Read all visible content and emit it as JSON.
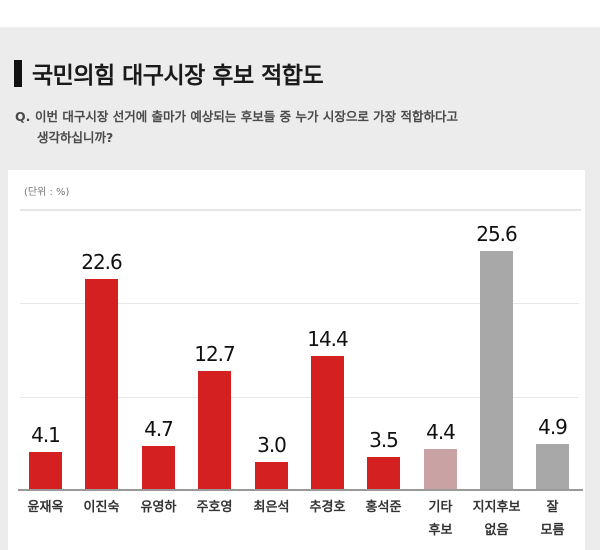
{
  "header": {
    "title": "국민의힘 대구시장 후보 적합도",
    "question_prefix": "Q.",
    "question_line1": "이번 대구시장 선거에 출마가 예상되는 후보들 중 누가 시장으로 가장 적합하다고",
    "question_line2": "생각하십니까?"
  },
  "unit_label": "(단위 : %)",
  "colors": {
    "candidate": "#d42020",
    "other": "#c9a3a3",
    "none": "#a8a8a8"
  },
  "chart_data": {
    "type": "bar",
    "title": "국민의힘 대구시장 후보 적합도",
    "subtitle": "Q. 이번 대구시장 선거에 출마가 예상되는 후보들 중 누가 시장으로 가장 적합하다고 생각하십니까?",
    "unit": "%",
    "xlabel": "",
    "ylabel": "",
    "ylim": [
      0,
      30
    ],
    "grid": true,
    "gridlines": [
      10,
      20,
      30
    ],
    "categories": [
      "윤재옥",
      "이진숙",
      "유영하",
      "주호영",
      "최은석",
      "추경호",
      "홍석준",
      "기타 후보",
      "지지후보 없음",
      "잘 모름"
    ],
    "values": [
      4.1,
      22.6,
      4.7,
      12.7,
      3.0,
      14.4,
      3.5,
      4.4,
      25.6,
      4.9
    ],
    "value_labels": [
      "4.1",
      "22.6",
      "4.7",
      "12.7",
      "3.0",
      "14.4",
      "3.5",
      "4.4",
      "25.6",
      "4.9"
    ],
    "bars": [
      {
        "label_line1": "윤재옥",
        "label_line2": "",
        "value": 4.1,
        "display": "4.1",
        "color": "#d42020"
      },
      {
        "label_line1": "이진숙",
        "label_line2": "",
        "value": 22.6,
        "display": "22.6",
        "color": "#d42020"
      },
      {
        "label_line1": "유영하",
        "label_line2": "",
        "value": 4.7,
        "display": "4.7",
        "color": "#d42020"
      },
      {
        "label_line1": "주호영",
        "label_line2": "",
        "value": 12.7,
        "display": "12.7",
        "color": "#d42020"
      },
      {
        "label_line1": "최은석",
        "label_line2": "",
        "value": 3.0,
        "display": "3.0",
        "color": "#d42020"
      },
      {
        "label_line1": "추경호",
        "label_line2": "",
        "value": 14.4,
        "display": "14.4",
        "color": "#d42020"
      },
      {
        "label_line1": "홍석준",
        "label_line2": "",
        "value": 3.5,
        "display": "3.5",
        "color": "#d42020"
      },
      {
        "label_line1": "기타",
        "label_line2": "후보",
        "value": 4.4,
        "display": "4.4",
        "color": "#c9a3a3"
      },
      {
        "label_line1": "지지후보",
        "label_line2": "없음",
        "value": 25.6,
        "display": "25.6",
        "color": "#a8a8a8"
      },
      {
        "label_line1": "잘",
        "label_line2": "모름",
        "value": 4.9,
        "display": "4.9",
        "color": "#a8a8a8"
      }
    ]
  }
}
